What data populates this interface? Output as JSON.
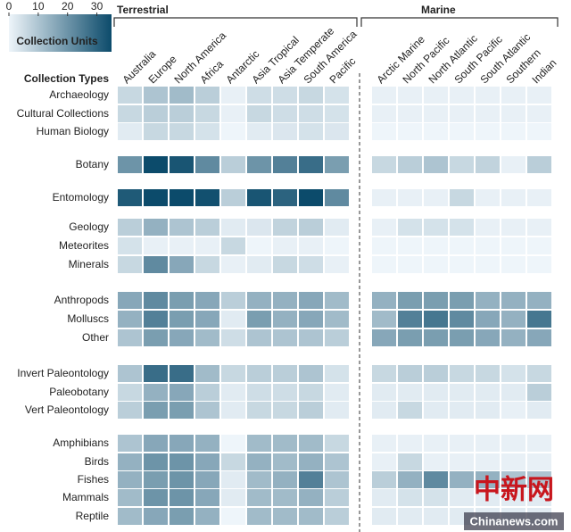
{
  "chart_data": {
    "type": "heatmap",
    "colorbar_label": "Collection Units",
    "y_label": "Collection Types",
    "x_groups": [
      "Terrestrial",
      "Marine"
    ],
    "x": [
      "Australia",
      "Europe",
      "North America",
      "Africa",
      "Antarctic",
      "Asia Tropical",
      "Asia Temperate",
      "South America",
      "Pacific",
      "Arctic Marine",
      "North Pacific",
      "North Atlantic",
      "South Pacific",
      "South Atlantic",
      "Southern",
      "Indian"
    ],
    "y": [
      "Archaeology",
      "Cultural Collections",
      "Human Biology",
      "Botany",
      "Entomology",
      "Geology",
      "Meteorites",
      "Minerals",
      "Anthropods",
      "Molluscs",
      "Other",
      "Invert Paleontology",
      "Paleobotany",
      "Vert Paleontology",
      "Amphibians",
      "Birds",
      "Fishes",
      "Mammals",
      "Reptile"
    ],
    "values": [
      [
        6,
        10,
        12,
        8,
        1,
        5,
        5,
        6,
        4,
        1,
        1,
        1,
        1,
        1,
        1,
        1
      ],
      [
        6,
        8,
        8,
        6,
        1,
        6,
        5,
        5,
        4,
        1,
        1,
        1,
        1,
        1,
        1,
        1
      ],
      [
        2,
        6,
        6,
        4,
        0,
        2,
        3,
        4,
        3,
        0,
        0,
        0,
        0,
        0,
        0,
        0
      ],
      [
        20,
        35,
        33,
        22,
        8,
        20,
        24,
        28,
        18,
        6,
        8,
        10,
        6,
        7,
        1,
        8
      ],
      [
        32,
        35,
        35,
        34,
        8,
        33,
        30,
        35,
        22,
        1,
        1,
        1,
        6,
        1,
        1,
        1
      ],
      [
        8,
        14,
        10,
        8,
        2,
        3,
        7,
        8,
        2,
        1,
        4,
        4,
        4,
        1,
        1,
        1
      ],
      [
        4,
        1,
        1,
        1,
        6,
        0,
        1,
        1,
        0,
        0,
        0,
        0,
        0,
        0,
        0,
        0
      ],
      [
        6,
        22,
        16,
        6,
        1,
        2,
        6,
        5,
        1,
        0,
        0,
        0,
        0,
        0,
        0,
        0
      ],
      [
        16,
        22,
        18,
        16,
        8,
        14,
        14,
        16,
        12,
        14,
        18,
        18,
        18,
        14,
        14,
        14
      ],
      [
        14,
        24,
        18,
        16,
        2,
        18,
        14,
        16,
        12,
        12,
        24,
        26,
        22,
        16,
        14,
        26
      ],
      [
        10,
        18,
        16,
        12,
        5,
        10,
        10,
        10,
        8,
        16,
        18,
        18,
        18,
        16,
        14,
        16
      ],
      [
        10,
        28,
        28,
        12,
        6,
        8,
        8,
        10,
        4,
        6,
        8,
        8,
        6,
        6,
        4,
        6
      ],
      [
        6,
        14,
        16,
        8,
        2,
        5,
        5,
        6,
        2,
        2,
        2,
        2,
        2,
        2,
        2,
        8
      ],
      [
        8,
        18,
        18,
        10,
        2,
        6,
        6,
        8,
        2,
        2,
        6,
        2,
        2,
        2,
        1,
        2
      ],
      [
        10,
        16,
        16,
        14,
        0,
        12,
        12,
        12,
        6,
        1,
        1,
        1,
        1,
        1,
        1,
        1
      ],
      [
        14,
        20,
        20,
        16,
        6,
        14,
        12,
        14,
        10,
        1,
        6,
        1,
        1,
        1,
        1,
        1
      ],
      [
        14,
        18,
        20,
        16,
        2,
        12,
        14,
        24,
        10,
        8,
        14,
        22,
        14,
        14,
        10,
        10
      ],
      [
        12,
        20,
        20,
        16,
        2,
        12,
        12,
        14,
        8,
        2,
        4,
        4,
        2,
        2,
        2,
        2
      ],
      [
        12,
        16,
        18,
        14,
        0,
        12,
        12,
        12,
        8,
        2,
        2,
        2,
        2,
        2,
        2,
        2
      ]
    ],
    "colors": [
      "#eef5fa",
      "#0c4b6b"
    ],
    "clim": [
      0,
      35
    ],
    "cticks": [
      0,
      10,
      20,
      30
    ],
    "watermark": [
      "中新网",
      "Chinanews.com"
    ]
  }
}
